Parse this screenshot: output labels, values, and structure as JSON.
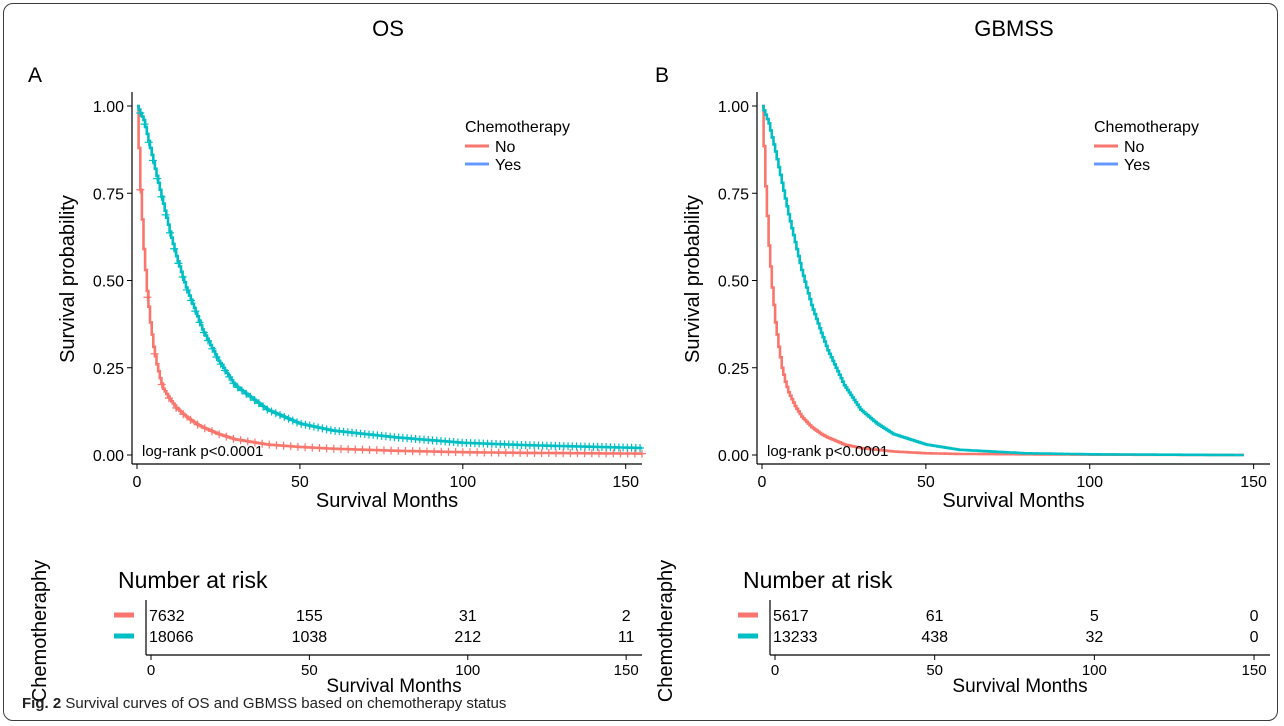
{
  "caption": {
    "label": "Fig. 2",
    "text": "Survival curves of OS and GBMSS based on chemotherapy status"
  },
  "chart_data": [
    {
      "type": "line",
      "panel": "A",
      "title": "OS",
      "xlabel": "Survival Months",
      "ylabel": "Survival probability",
      "xlim": [
        0,
        155
      ],
      "ylim": [
        0,
        1
      ],
      "x_ticks": [
        0,
        50,
        100,
        150
      ],
      "y_ticks": [
        "0.00",
        "0.25",
        "0.50",
        "0.75",
        "1.00"
      ],
      "annotation": "log-rank p<0.0001",
      "legend": {
        "title": "Chemotherapy",
        "position": "top-right",
        "entries": [
          "No",
          "Yes"
        ]
      },
      "censor_marks": true,
      "series": [
        {
          "name": "No",
          "color": "#F8766D",
          "x": [
            0,
            1,
            2,
            3,
            4,
            5,
            6,
            7,
            8,
            10,
            12,
            15,
            18,
            20,
            25,
            30,
            40,
            50,
            60,
            80,
            100,
            120,
            155
          ],
          "y": [
            1.0,
            0.76,
            0.59,
            0.47,
            0.38,
            0.31,
            0.26,
            0.22,
            0.19,
            0.16,
            0.135,
            0.11,
            0.09,
            0.08,
            0.06,
            0.045,
            0.03,
            0.023,
            0.018,
            0.012,
            0.008,
            0.006,
            0.004
          ]
        },
        {
          "name": "Yes",
          "color": "#00BFC4",
          "x": [
            0,
            2,
            4,
            6,
            8,
            10,
            12,
            15,
            18,
            20,
            25,
            30,
            40,
            50,
            60,
            80,
            100,
            120,
            155
          ],
          "y": [
            1.0,
            0.96,
            0.88,
            0.8,
            0.72,
            0.64,
            0.57,
            0.48,
            0.41,
            0.36,
            0.27,
            0.2,
            0.13,
            0.09,
            0.07,
            0.05,
            0.035,
            0.028,
            0.02
          ]
        }
      ],
      "risk_table": {
        "title": "Number at risk",
        "ylabel": "Chemotheraphy",
        "xlabel": "Survival Months",
        "times": [
          0,
          50,
          100,
          150
        ],
        "rows": [
          {
            "group": "No",
            "color": "#F8766D",
            "counts": [
              "7632",
              "155",
              "31",
              "2"
            ]
          },
          {
            "group": "Yes",
            "color": "#00BFC4",
            "counts": [
              "18066",
              "1038",
              "212",
              "11"
            ]
          }
        ]
      }
    },
    {
      "type": "line",
      "panel": "B",
      "title": "GBMSS",
      "xlabel": "Survival Months",
      "ylabel": "Survival probability",
      "xlim": [
        0,
        155
      ],
      "ylim": [
        0,
        1
      ],
      "x_ticks": [
        0,
        50,
        100,
        150
      ],
      "y_ticks": [
        "0.00",
        "0.25",
        "0.50",
        "0.75",
        "1.00"
      ],
      "annotation": "log-rank p<0.0001",
      "legend": {
        "title": "Chemotherapy",
        "position": "top-right",
        "entries": [
          "No",
          "Yes"
        ]
      },
      "censor_marks": false,
      "series": [
        {
          "name": "No",
          "color": "#F8766D",
          "x": [
            0,
            1,
            2,
            3,
            4,
            5,
            6,
            7,
            8,
            10,
            12,
            15,
            18,
            20,
            25,
            30,
            40,
            50,
            60,
            80,
            100,
            147
          ],
          "y": [
            1.0,
            0.77,
            0.6,
            0.48,
            0.38,
            0.31,
            0.25,
            0.21,
            0.18,
            0.14,
            0.11,
            0.08,
            0.06,
            0.05,
            0.03,
            0.02,
            0.01,
            0.005,
            0.003,
            0.002,
            0.001,
            0.0
          ]
        },
        {
          "name": "Yes",
          "color": "#00BFC4",
          "x": [
            0,
            2,
            4,
            6,
            8,
            10,
            12,
            15,
            18,
            20,
            25,
            30,
            35,
            40,
            50,
            60,
            80,
            100,
            120,
            147
          ],
          "y": [
            1.0,
            0.95,
            0.87,
            0.78,
            0.69,
            0.61,
            0.53,
            0.43,
            0.35,
            0.3,
            0.2,
            0.13,
            0.09,
            0.06,
            0.03,
            0.015,
            0.005,
            0.002,
            0.001,
            0.0
          ]
        }
      ],
      "risk_table": {
        "title": "Number at risk",
        "ylabel": "Chemotheraphy",
        "xlabel": "Survival Months",
        "times": [
          0,
          50,
          100,
          150
        ],
        "rows": [
          {
            "group": "No",
            "color": "#F8766D",
            "counts": [
              "5617",
              "61",
              "5",
              "0"
            ]
          },
          {
            "group": "Yes",
            "color": "#00BFC4",
            "counts": [
              "13233",
              "438",
              "32",
              "0"
            ]
          }
        ]
      }
    }
  ]
}
